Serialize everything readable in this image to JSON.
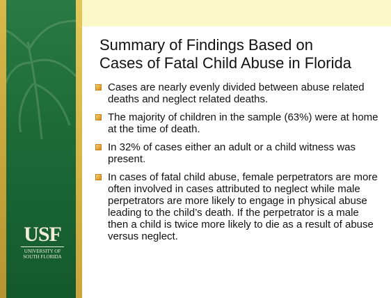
{
  "slide": {
    "title_lines": [
      "Summary of Findings Based on",
      "Cases of Fatal Child Abuse in Florida"
    ],
    "bullets": [
      "Cases are nearly evenly divided between abuse related deaths and neglect related deaths.",
      "The majority of children in the sample (63%) were at home at the time of death.",
      "In 32% of cases either an adult or a child witness was present.",
      "In cases of fatal child abuse, female perpetrators are more often involved in cases attributed to neglect while male perpetrators are more likely to engage in physical abuse leading to the child’s death. If the perpetrator is a male then a child is twice more likely to die as a result of abuse versus neglect."
    ],
    "logo": {
      "mark": "USF",
      "line1": "UNIVERSITY OF",
      "line2": "SOUTH FLORIDA"
    }
  }
}
